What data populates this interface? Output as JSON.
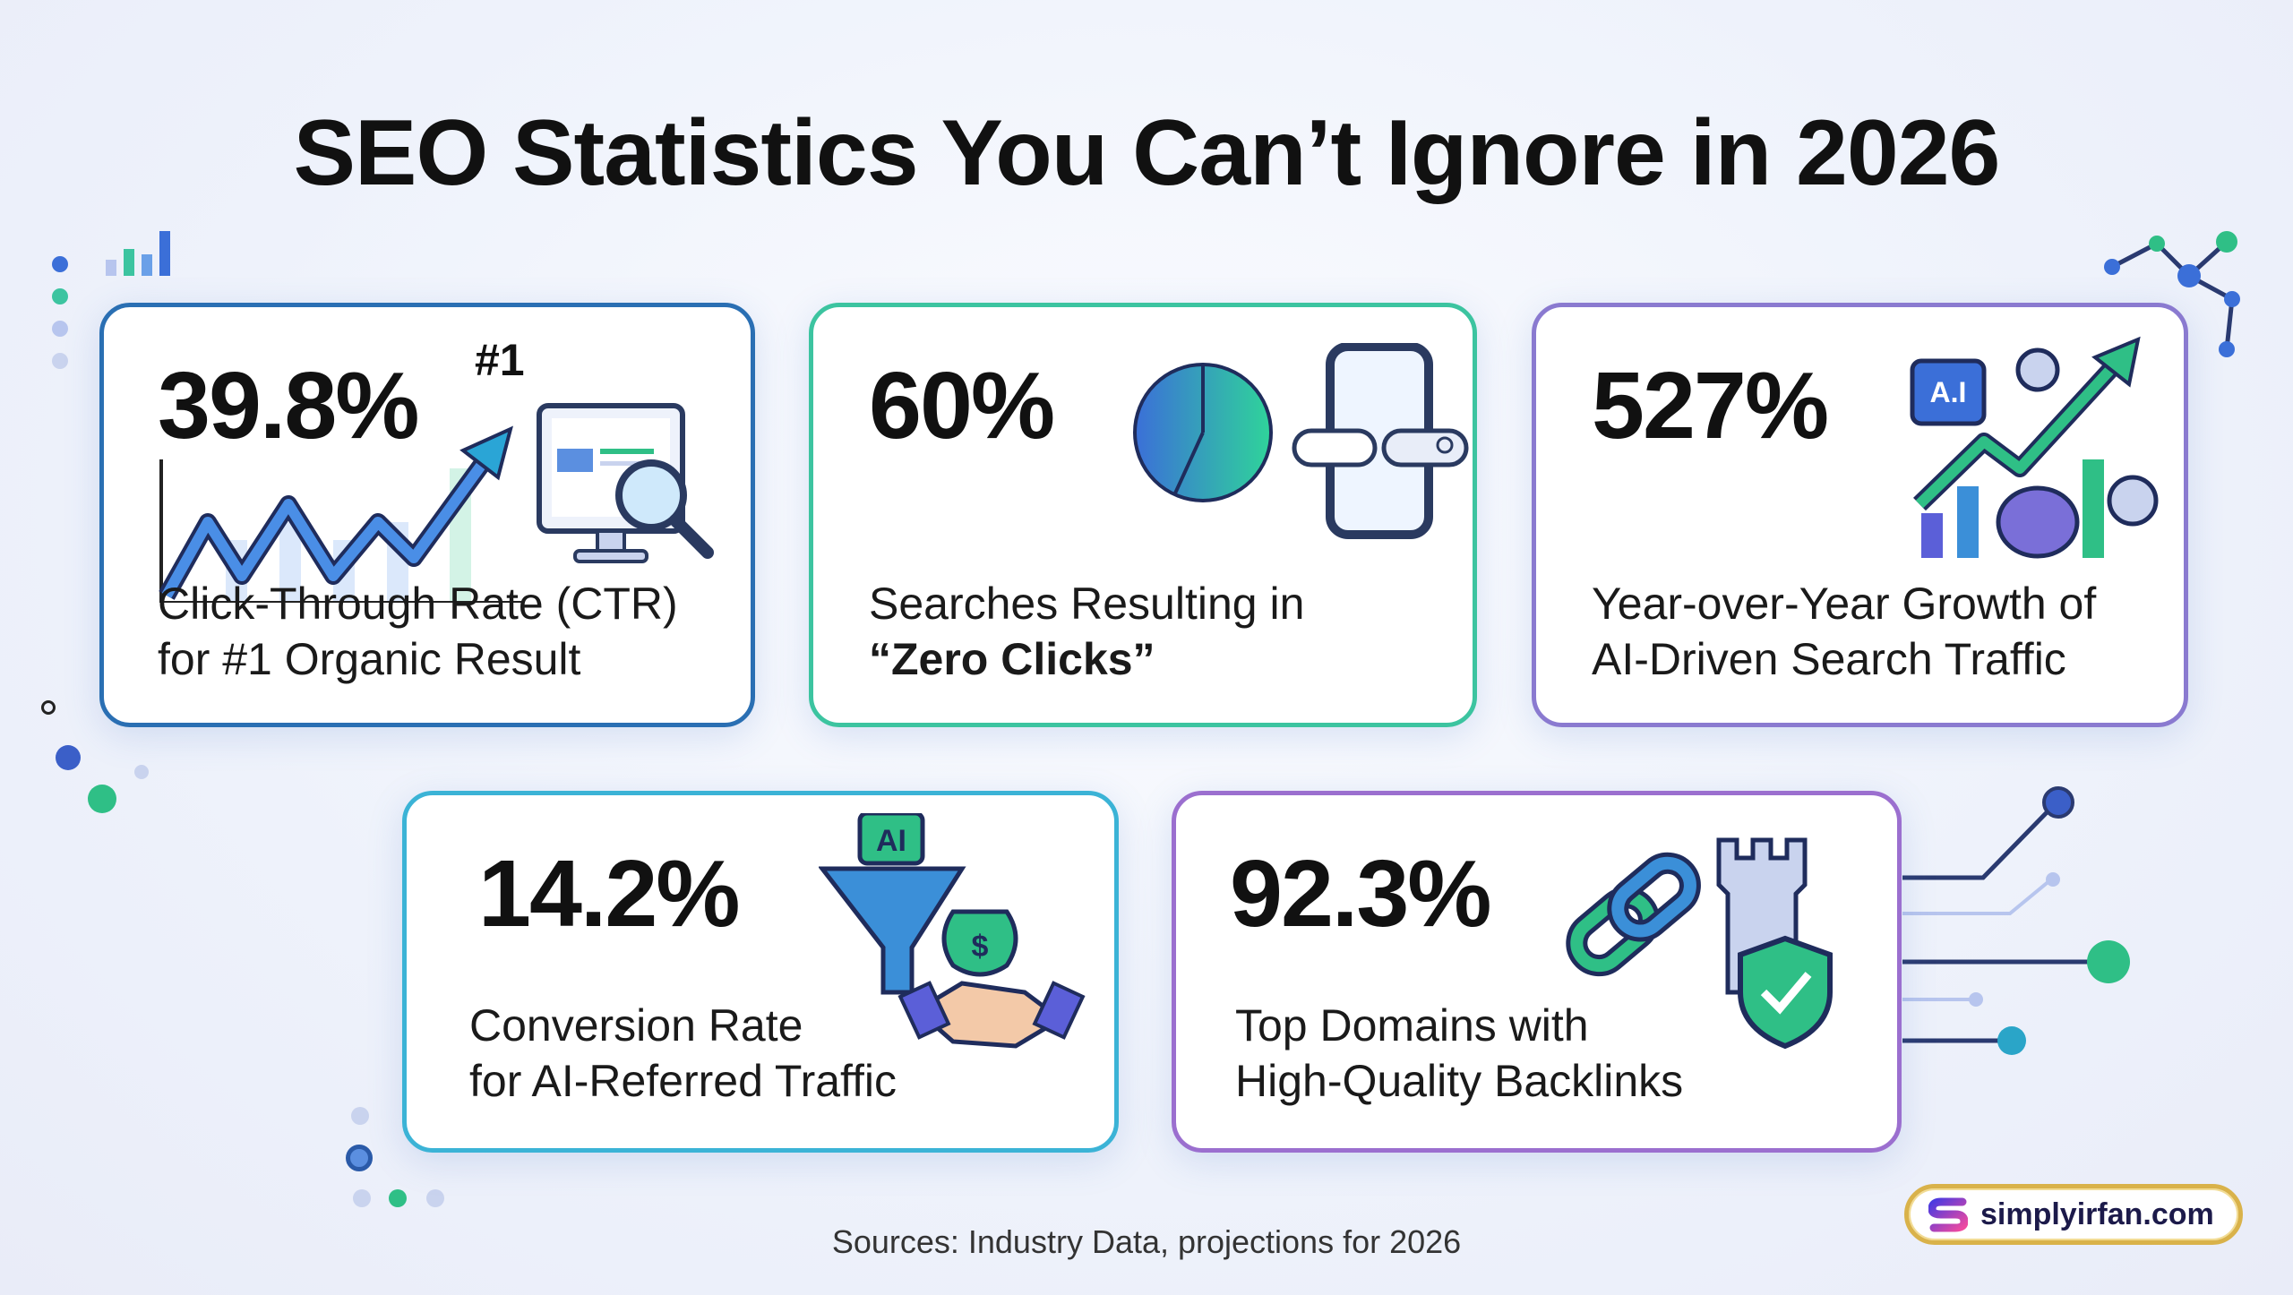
{
  "title": "SEO Statistics You Can’t Ignore in 2026",
  "stats": [
    {
      "value": "39.8%",
      "label_line1": "Click-Through Rate (CTR)",
      "label_line2": "for #1 Organic Result",
      "icon": "trend-chart-monitor-magnifier-icon",
      "badge": "#1",
      "border": "#2a6fb3"
    },
    {
      "value": "60%",
      "label_line1": "Searches Resulting in",
      "label_line2": "“Zero Clicks”",
      "icon": "pie-chart-phone-search-icon",
      "border": "#3cc4a0"
    },
    {
      "value": "527%",
      "label_line1": "Year-over-Year Growth of",
      "label_line2": "AI-Driven Search Traffic",
      "icon": "ai-chip-growth-brain-gears-icon",
      "chip_text": "A.I",
      "border": "#8a7ad0"
    },
    {
      "value": "14.2%",
      "label_line1": "Conversion Rate",
      "label_line2": "for AI-Referred Traffic",
      "icon": "ai-funnel-money-handshake-icon",
      "chip_text": "AI",
      "border": "#3bb3d6"
    },
    {
      "value": "92.3%",
      "label_line1": "Top Domains with",
      "label_line2": "High-Quality Backlinks",
      "icon": "link-tower-shield-icon",
      "border": "#9b6fcf"
    }
  ],
  "sources": "Sources: Industry Data, projections for 2026",
  "brand": {
    "name": "simplyirfan.com",
    "logo_letter": "S"
  }
}
